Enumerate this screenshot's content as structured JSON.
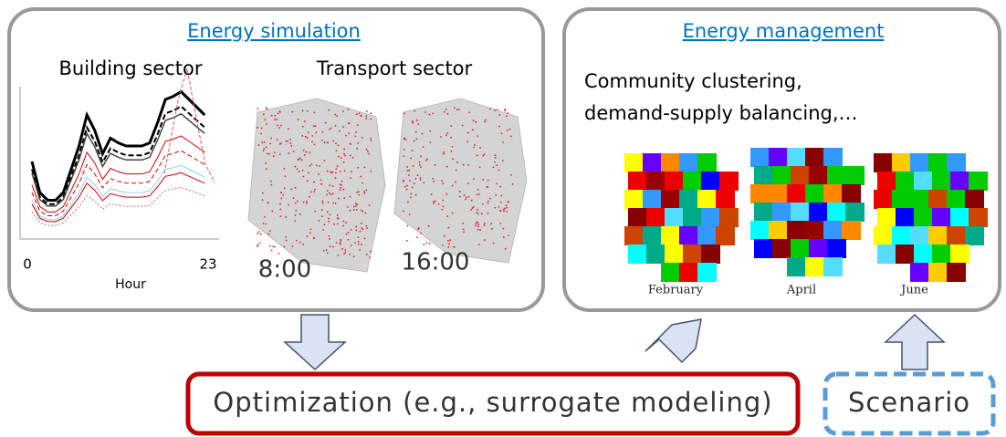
{
  "simulation": {
    "title": "Energy simulation",
    "building_sector": "Building sector",
    "transport_sector": "Transport sector",
    "chart_axis": {
      "x_start": "0",
      "x_end": "23",
      "x_label": "Hour"
    },
    "times": [
      "8:00",
      "16:00"
    ]
  },
  "management": {
    "title": "Energy management",
    "description_lines": [
      "Community clustering,",
      "demand-supply balancing,…"
    ],
    "months": [
      "February",
      "April",
      "June"
    ]
  },
  "optimization": "Optimization (e.g., surrogate modeling)",
  "scenario": "Scenario"
}
